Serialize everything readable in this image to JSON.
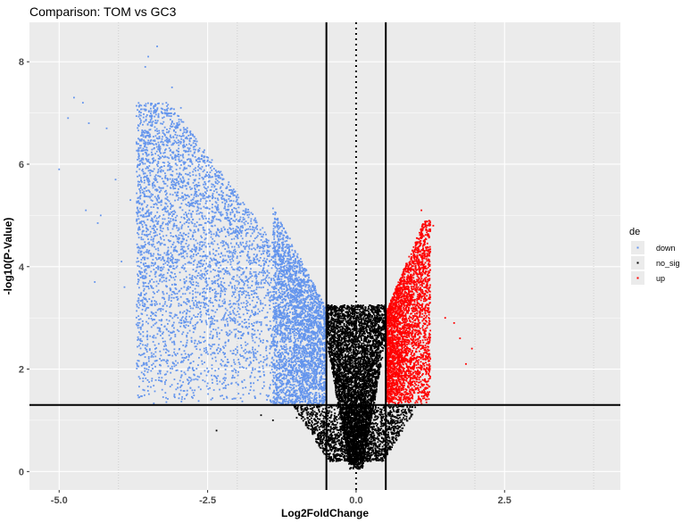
{
  "chart_data": {
    "type": "scatter",
    "title": "Comparison: TOM vs GC3",
    "xlabel": "Log2FoldChange",
    "ylabel": "-log10(P-Value)",
    "xlim": [
      -5.5,
      4.45
    ],
    "ylim": [
      -0.36,
      8.77
    ],
    "x_ticks": [
      -5.0,
      -2.5,
      0.0,
      2.5
    ],
    "x_tick_labels": [
      "-5.0",
      "-2.5",
      "0.0",
      "2.5"
    ],
    "x_minor_dotted": [
      -4,
      -2,
      2,
      4
    ],
    "y_ticks": [
      0,
      2,
      4,
      6,
      8
    ],
    "y_tick_labels": [
      "0",
      "2",
      "4",
      "6",
      "8"
    ],
    "grid": true,
    "background": "#ebebeb",
    "reference_lines": {
      "vertical_solid": [
        -0.5,
        0.5
      ],
      "vertical_dotted": [
        0
      ],
      "horizontal_solid": [
        1.3
      ]
    },
    "legend": {
      "title": "de",
      "position": "right",
      "entries": [
        {
          "label": "down",
          "color": "#6495ed"
        },
        {
          "label": "no_sig",
          "color": "#000000"
        },
        {
          "label": "up",
          "color": "#ff0000"
        }
      ]
    },
    "series": [
      {
        "name": "down",
        "color": "#6495ed",
        "points": [
          [
            -5.0,
            5.9
          ],
          [
            -4.85,
            6.9
          ],
          [
            -4.75,
            7.3
          ],
          [
            -4.6,
            7.2
          ],
          [
            -4.5,
            6.8
          ],
          [
            -4.55,
            5.1
          ],
          [
            -4.3,
            5.0
          ],
          [
            -4.35,
            4.85
          ],
          [
            -4.2,
            6.7
          ],
          [
            -4.05,
            5.7
          ],
          [
            -3.95,
            4.1
          ],
          [
            -3.8,
            5.3
          ],
          [
            -3.6,
            5.5
          ],
          [
            -3.55,
            7.9
          ],
          [
            -3.5,
            8.1
          ],
          [
            -3.35,
            8.3
          ],
          [
            -3.1,
            7.5
          ],
          [
            -2.95,
            7.1
          ],
          [
            -2.8,
            6.5
          ],
          [
            -2.6,
            6.1
          ],
          [
            -2.5,
            4.2
          ],
          [
            -2.45,
            3.3
          ],
          [
            -2.3,
            2.7
          ],
          [
            -2.2,
            1.9
          ],
          [
            -2.05,
            2.0
          ],
          [
            -1.9,
            1.5
          ],
          [
            -1.7,
            2.0
          ],
          [
            -1.5,
            1.4
          ],
          [
            -3.2,
            1.9
          ],
          [
            -3.0,
            3.0
          ],
          [
            -3.9,
            3.6
          ],
          [
            -4.4,
            3.7
          ]
        ]
      },
      {
        "name": "no_sig",
        "color": "#000000",
        "points": [
          [
            -2.35,
            0.8
          ],
          [
            -1.6,
            1.1
          ],
          [
            -1.4,
            1.0
          ],
          [
            -1.0,
            1.05
          ],
          [
            -0.8,
            0.95
          ]
        ]
      },
      {
        "name": "up",
        "color": "#ff0000",
        "points": [
          [
            1.1,
            5.1
          ],
          [
            1.3,
            4.8
          ],
          [
            1.5,
            3.0
          ],
          [
            1.65,
            2.9
          ],
          [
            1.75,
            2.6
          ],
          [
            1.95,
            2.4
          ],
          [
            1.85,
            2.1
          ],
          [
            1.25,
            2.2
          ],
          [
            1.0,
            1.6
          ]
        ]
      }
    ]
  }
}
